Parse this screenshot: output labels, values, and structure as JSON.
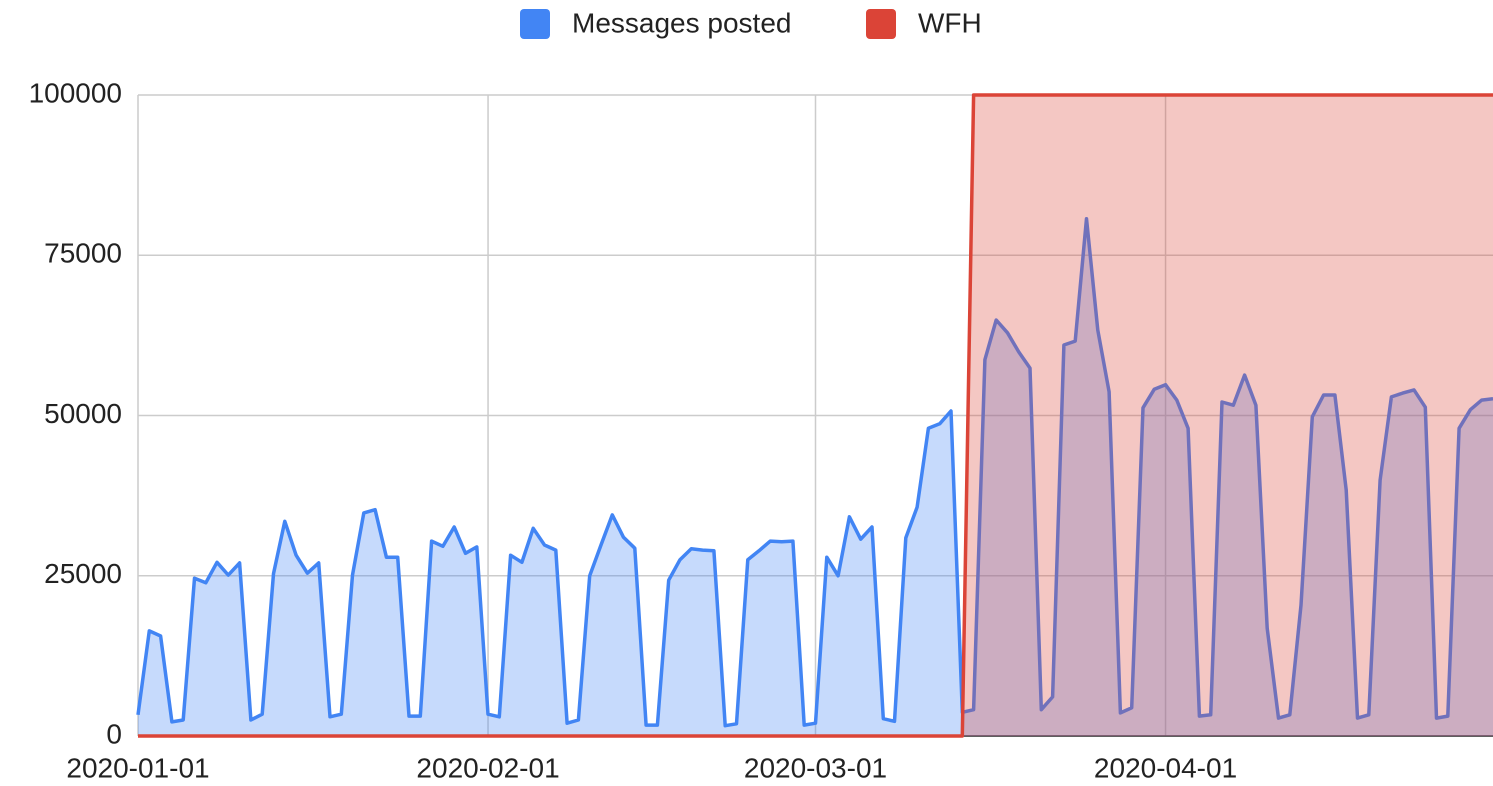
{
  "chart_data": {
    "type": "area",
    "x": [
      "2020-01-01",
      "2020-01-02",
      "2020-01-03",
      "2020-01-04",
      "2020-01-05",
      "2020-01-06",
      "2020-01-07",
      "2020-01-08",
      "2020-01-09",
      "2020-01-10",
      "2020-01-11",
      "2020-01-12",
      "2020-01-13",
      "2020-01-14",
      "2020-01-15",
      "2020-01-16",
      "2020-01-17",
      "2020-01-18",
      "2020-01-19",
      "2020-01-20",
      "2020-01-21",
      "2020-01-22",
      "2020-01-23",
      "2020-01-24",
      "2020-01-25",
      "2020-01-26",
      "2020-01-27",
      "2020-01-28",
      "2020-01-29",
      "2020-01-30",
      "2020-01-31",
      "2020-02-01",
      "2020-02-02",
      "2020-02-03",
      "2020-02-04",
      "2020-02-05",
      "2020-02-06",
      "2020-02-07",
      "2020-02-08",
      "2020-02-09",
      "2020-02-10",
      "2020-02-11",
      "2020-02-12",
      "2020-02-13",
      "2020-02-14",
      "2020-02-15",
      "2020-02-16",
      "2020-02-17",
      "2020-02-18",
      "2020-02-19",
      "2020-02-20",
      "2020-02-21",
      "2020-02-22",
      "2020-02-23",
      "2020-02-24",
      "2020-02-25",
      "2020-02-26",
      "2020-02-27",
      "2020-02-28",
      "2020-02-29",
      "2020-03-01",
      "2020-03-02",
      "2020-03-03",
      "2020-03-04",
      "2020-03-05",
      "2020-03-06",
      "2020-03-07",
      "2020-03-08",
      "2020-03-09",
      "2020-03-10",
      "2020-03-11",
      "2020-03-12",
      "2020-03-13",
      "2020-03-14",
      "2020-03-15",
      "2020-03-16",
      "2020-03-17",
      "2020-03-18",
      "2020-03-19",
      "2020-03-20",
      "2020-03-21",
      "2020-03-22",
      "2020-03-23",
      "2020-03-24",
      "2020-03-25",
      "2020-03-26",
      "2020-03-27",
      "2020-03-28",
      "2020-03-29",
      "2020-03-30",
      "2020-03-31",
      "2020-04-01",
      "2020-04-02",
      "2020-04-03",
      "2020-04-04",
      "2020-04-05",
      "2020-04-06",
      "2020-04-07",
      "2020-04-08",
      "2020-04-09",
      "2020-04-10",
      "2020-04-11",
      "2020-04-12",
      "2020-04-13",
      "2020-04-14",
      "2020-04-15",
      "2020-04-16",
      "2020-04-17",
      "2020-04-18",
      "2020-04-19",
      "2020-04-20",
      "2020-04-21",
      "2020-04-22",
      "2020-04-23",
      "2020-04-24",
      "2020-04-25",
      "2020-04-26",
      "2020-04-27",
      "2020-04-28",
      "2020-04-29",
      "2020-04-30"
    ],
    "series": [
      {
        "name": "Messages posted",
        "color": "#4285f4",
        "values": [
          3300,
          16400,
          15600,
          2200,
          2500,
          24600,
          23900,
          27100,
          25100,
          27000,
          2500,
          3400,
          25300,
          33500,
          28200,
          25400,
          27000,
          3000,
          3400,
          25100,
          34800,
          35300,
          27900,
          27900,
          3100,
          3100,
          30400,
          29600,
          32600,
          28500,
          29500,
          3400,
          3000,
          28200,
          27100,
          32400,
          29800,
          29000,
          2000,
          2500,
          25000,
          29800,
          34500,
          31000,
          29300,
          1700,
          1700,
          24300,
          27500,
          29200,
          29000,
          28900,
          1600,
          1900,
          27500,
          28900,
          30400,
          30300,
          30400,
          1700,
          2000,
          27900,
          25000,
          34200,
          30700,
          32600,
          2700,
          2300,
          30900,
          35700,
          48000,
          48700,
          50700,
          3700,
          4100,
          58700,
          64900,
          62900,
          59900,
          57400,
          4100,
          6100,
          61000,
          61600,
          80700,
          63300,
          53700,
          3600,
          4400,
          51200,
          54100,
          54800,
          52400,
          48000,
          3100,
          3300,
          52100,
          51600,
          56300,
          51600,
          16800,
          2800,
          3300,
          20400,
          49800,
          53200,
          53200,
          38400,
          2800,
          3300,
          39900,
          52900,
          53500,
          54000,
          51300,
          2800,
          3100,
          48000,
          50900,
          52400,
          52600
        ]
      },
      {
        "name": "WFH",
        "color": "#db4437",
        "values": [
          0,
          0,
          0,
          0,
          0,
          0,
          0,
          0,
          0,
          0,
          0,
          0,
          0,
          0,
          0,
          0,
          0,
          0,
          0,
          0,
          0,
          0,
          0,
          0,
          0,
          0,
          0,
          0,
          0,
          0,
          0,
          0,
          0,
          0,
          0,
          0,
          0,
          0,
          0,
          0,
          0,
          0,
          0,
          0,
          0,
          0,
          0,
          0,
          0,
          0,
          0,
          0,
          0,
          0,
          0,
          0,
          0,
          0,
          0,
          0,
          0,
          0,
          0,
          0,
          0,
          0,
          0,
          0,
          0,
          0,
          0,
          0,
          0,
          0,
          100000,
          100000,
          100000,
          100000,
          100000,
          100000,
          100000,
          100000,
          100000,
          100000,
          100000,
          100000,
          100000,
          100000,
          100000,
          100000,
          100000,
          100000,
          100000,
          100000,
          100000,
          100000,
          100000,
          100000,
          100000,
          100000,
          100000,
          100000,
          100000,
          100000,
          100000,
          100000,
          100000,
          100000,
          100000,
          100000,
          100000,
          100000,
          100000,
          100000,
          100000,
          100000,
          100000,
          100000,
          100000,
          100000,
          100000
        ]
      }
    ],
    "xlim": [
      "2020-01-01",
      "2020-04-30"
    ],
    "xticks": [
      "2020-01-01",
      "2020-02-01",
      "2020-03-01",
      "2020-04-01"
    ],
    "ylim": [
      0,
      100000
    ],
    "yticks": [
      0,
      25000,
      50000,
      75000,
      100000
    ],
    "grid": true,
    "legend": "top"
  }
}
